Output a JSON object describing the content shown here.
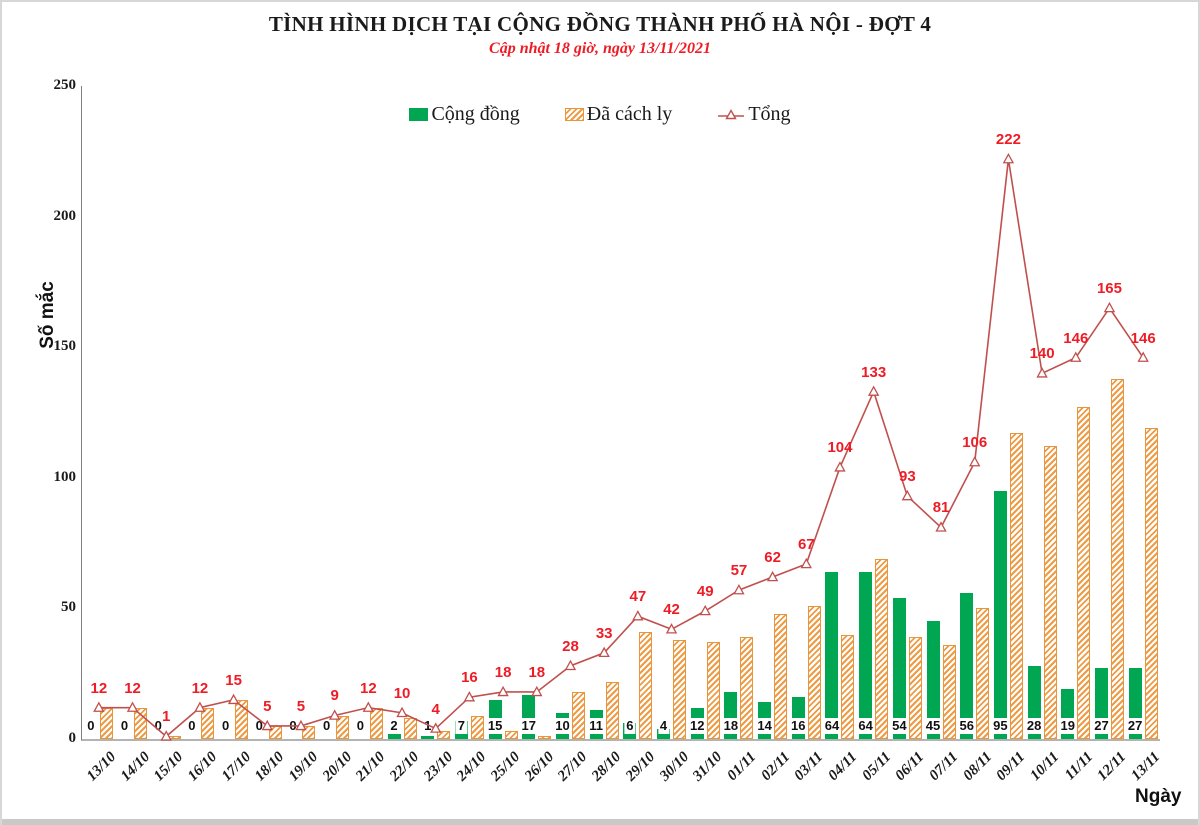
{
  "title": "TÌNH HÌNH DỊCH TẠI CỘNG ĐỒNG THÀNH PHỐ HÀ NỘI - ĐỢT 4",
  "subtitle": "Cập nhật 18 giờ, ngày 13/11/2021",
  "legend": {
    "cong_dong": "Cộng đồng",
    "da_cach_ly": "Đã cách ly",
    "tong": "Tổng"
  },
  "axes": {
    "y_title": "Số mắc",
    "x_title": "Ngày",
    "y_ticks": [
      0,
      50,
      100,
      150,
      200,
      250
    ]
  },
  "colors": {
    "green": "#00A651",
    "orange": "#ED9C45",
    "orange_border": "#E8953C",
    "line": "#C0504D",
    "red_label": "#EE1C25"
  },
  "chart_data": {
    "type": "bar",
    "title": "TÌNH HÌNH DỊCH TẠI CỘNG ĐỒNG THÀNH PHỐ HÀ NỘI - ĐỢT 4",
    "subtitle": "Cập nhật 18 giờ, ngày 13/11/2021",
    "xlabel": "Ngày",
    "ylabel": "Số mắc",
    "ylim": [
      0,
      250
    ],
    "grid": false,
    "legend_position": "top",
    "categories": [
      "13/10",
      "14/10",
      "15/10",
      "16/10",
      "17/10",
      "18/10",
      "19/10",
      "20/10",
      "21/10",
      "22/10",
      "23/10",
      "24/10",
      "25/10",
      "26/10",
      "27/10",
      "28/10",
      "29/10",
      "30/10",
      "31/10",
      "01/11",
      "02/11",
      "03/11",
      "04/11",
      "05/11",
      "06/11",
      "07/11",
      "08/11",
      "09/11",
      "10/11",
      "11/11",
      "12/11",
      "13/11"
    ],
    "series": [
      {
        "name": "Cộng đồng",
        "type": "bar",
        "style": "solid-green",
        "labels_shown": true,
        "values": [
          0,
          0,
          0,
          0,
          0,
          0,
          0,
          0,
          0,
          2,
          1,
          7,
          15,
          17,
          10,
          11,
          6,
          4,
          12,
          18,
          14,
          16,
          64,
          64,
          54,
          45,
          56,
          95,
          28,
          19,
          27,
          27
        ]
      },
      {
        "name": "Đã cách ly",
        "type": "bar",
        "style": "orange-hatched",
        "labels_shown": false,
        "values": [
          12,
          12,
          1,
          12,
          15,
          5,
          5,
          9,
          12,
          8,
          3,
          9,
          3,
          1,
          18,
          22,
          41,
          38,
          37,
          39,
          48,
          51,
          40,
          69,
          39,
          36,
          50,
          117,
          112,
          127,
          138,
          119
        ]
      },
      {
        "name": "Tổng",
        "type": "line",
        "marker": "open-triangle",
        "labels_shown": true,
        "values": [
          12,
          12,
          1,
          12,
          15,
          5,
          5,
          9,
          12,
          10,
          4,
          16,
          18,
          18,
          28,
          33,
          47,
          42,
          49,
          57,
          62,
          67,
          104,
          133,
          93,
          81,
          106,
          222,
          140,
          146,
          165,
          146
        ]
      }
    ]
  }
}
